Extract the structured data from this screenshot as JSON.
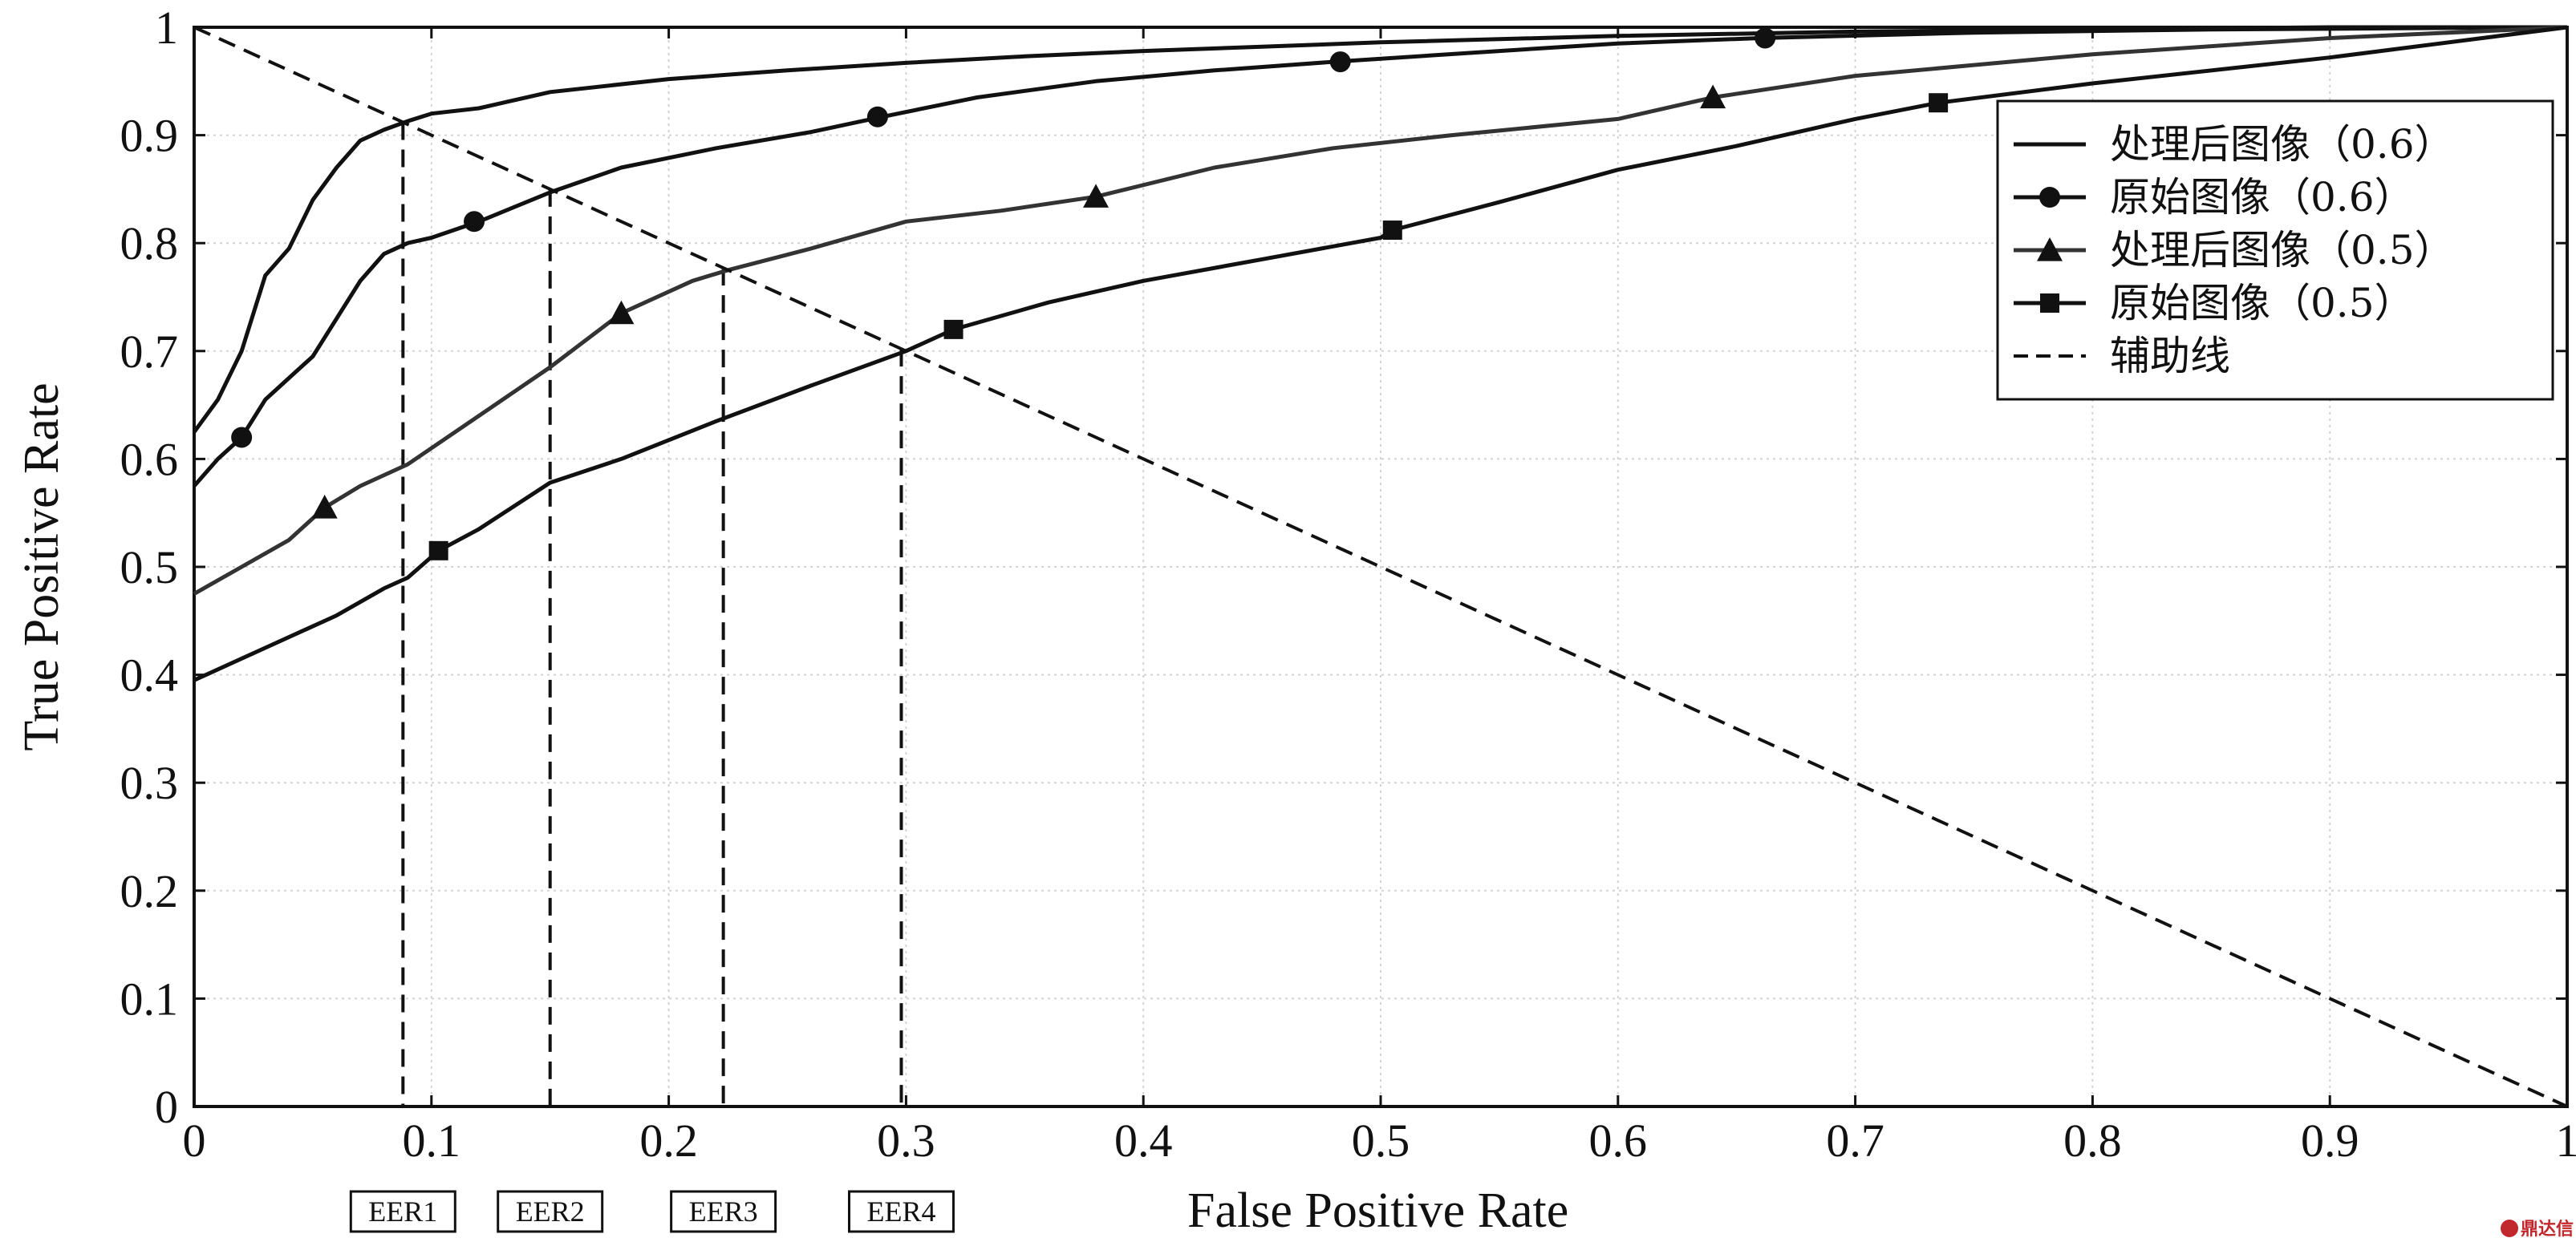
{
  "chart_data": {
    "type": "line",
    "title": "",
    "xlabel": "False Positive Rate",
    "ylabel": "True Positive Rate",
    "xlim": [
      0,
      1
    ],
    "ylim": [
      0,
      1
    ],
    "xticks": [
      "0",
      "0.1",
      "0.2",
      "0.3",
      "0.4",
      "0.5",
      "0.6",
      "0.7",
      "0.8",
      "0.9",
      "1"
    ],
    "yticks": [
      "0",
      "0.1",
      "0.2",
      "0.3",
      "0.4",
      "0.5",
      "0.6",
      "0.7",
      "0.8",
      "0.9",
      "1"
    ],
    "grid": true,
    "legend_position": "top-right",
    "series": [
      {
        "name": "处理后图像（0.6）",
        "marker": "none",
        "line": "solid",
        "color": "#111111",
        "points": [
          [
            0,
            0.625
          ],
          [
            0.01,
            0.655
          ],
          [
            0.02,
            0.7
          ],
          [
            0.03,
            0.77
          ],
          [
            0.04,
            0.795
          ],
          [
            0.05,
            0.84
          ],
          [
            0.06,
            0.87
          ],
          [
            0.07,
            0.895
          ],
          [
            0.08,
            0.905
          ],
          [
            0.09,
            0.913
          ],
          [
            0.1,
            0.92
          ],
          [
            0.12,
            0.925
          ],
          [
            0.15,
            0.94
          ],
          [
            0.2,
            0.952
          ],
          [
            0.25,
            0.96
          ],
          [
            0.3,
            0.967
          ],
          [
            0.35,
            0.973
          ],
          [
            0.4,
            0.978
          ],
          [
            0.45,
            0.982
          ],
          [
            0.5,
            0.986
          ],
          [
            0.6,
            0.992
          ],
          [
            0.7,
            0.996
          ],
          [
            0.8,
            0.998
          ],
          [
            0.9,
            1.0
          ],
          [
            1.0,
            1.0
          ]
        ],
        "markers": []
      },
      {
        "name": "原始图像（0.6）",
        "marker": "circle",
        "line": "solid",
        "color": "#111111",
        "points": [
          [
            0,
            0.575
          ],
          [
            0.01,
            0.6
          ],
          [
            0.02,
            0.62
          ],
          [
            0.03,
            0.655
          ],
          [
            0.04,
            0.675
          ],
          [
            0.05,
            0.695
          ],
          [
            0.06,
            0.73
          ],
          [
            0.07,
            0.765
          ],
          [
            0.08,
            0.79
          ],
          [
            0.09,
            0.8
          ],
          [
            0.1,
            0.805
          ],
          [
            0.12,
            0.82
          ],
          [
            0.15,
            0.847
          ],
          [
            0.18,
            0.87
          ],
          [
            0.22,
            0.888
          ],
          [
            0.26,
            0.903
          ],
          [
            0.29,
            0.917
          ],
          [
            0.33,
            0.935
          ],
          [
            0.38,
            0.95
          ],
          [
            0.43,
            0.96
          ],
          [
            0.48,
            0.968
          ],
          [
            0.55,
            0.978
          ],
          [
            0.6,
            0.985
          ],
          [
            0.66,
            0.99
          ],
          [
            0.75,
            0.995
          ],
          [
            0.85,
            0.998
          ],
          [
            1.0,
            1.0
          ]
        ],
        "markers": [
          [
            0.02,
            0.62
          ],
          [
            0.118,
            0.82
          ],
          [
            0.288,
            0.917
          ],
          [
            0.483,
            0.968
          ],
          [
            0.662,
            0.99
          ]
        ]
      },
      {
        "name": "处理后图像（0.5）",
        "marker": "triangle",
        "line": "solid",
        "color": "#333333",
        "points": [
          [
            0,
            0.475
          ],
          [
            0.02,
            0.5
          ],
          [
            0.04,
            0.525
          ],
          [
            0.055,
            0.555
          ],
          [
            0.07,
            0.575
          ],
          [
            0.09,
            0.595
          ],
          [
            0.12,
            0.64
          ],
          [
            0.15,
            0.685
          ],
          [
            0.18,
            0.735
          ],
          [
            0.21,
            0.765
          ],
          [
            0.225,
            0.775
          ],
          [
            0.26,
            0.795
          ],
          [
            0.3,
            0.82
          ],
          [
            0.34,
            0.83
          ],
          [
            0.38,
            0.843
          ],
          [
            0.43,
            0.87
          ],
          [
            0.48,
            0.888
          ],
          [
            0.53,
            0.9
          ],
          [
            0.6,
            0.915
          ],
          [
            0.64,
            0.935
          ],
          [
            0.7,
            0.955
          ],
          [
            0.75,
            0.965
          ],
          [
            0.8,
            0.975
          ],
          [
            0.9,
            0.99
          ],
          [
            1.0,
            1.0
          ]
        ],
        "markers": [
          [
            0.055,
            0.555
          ],
          [
            0.18,
            0.735
          ],
          [
            0.38,
            0.843
          ],
          [
            0.64,
            0.935
          ]
        ]
      },
      {
        "name": "原始图像（0.5）",
        "marker": "square",
        "line": "solid",
        "color": "#111111",
        "points": [
          [
            0,
            0.395
          ],
          [
            0.02,
            0.415
          ],
          [
            0.04,
            0.435
          ],
          [
            0.06,
            0.455
          ],
          [
            0.08,
            0.48
          ],
          [
            0.09,
            0.49
          ],
          [
            0.103,
            0.515
          ],
          [
            0.12,
            0.535
          ],
          [
            0.15,
            0.578
          ],
          [
            0.18,
            0.6
          ],
          [
            0.22,
            0.635
          ],
          [
            0.26,
            0.668
          ],
          [
            0.3,
            0.7
          ],
          [
            0.32,
            0.72
          ],
          [
            0.36,
            0.745
          ],
          [
            0.4,
            0.765
          ],
          [
            0.45,
            0.785
          ],
          [
            0.5,
            0.805
          ],
          [
            0.505,
            0.812
          ],
          [
            0.55,
            0.838
          ],
          [
            0.6,
            0.868
          ],
          [
            0.65,
            0.89
          ],
          [
            0.7,
            0.915
          ],
          [
            0.735,
            0.93
          ],
          [
            0.8,
            0.948
          ],
          [
            0.9,
            0.972
          ],
          [
            1.0,
            1.0
          ]
        ],
        "markers": [
          [
            0.103,
            0.515
          ],
          [
            0.32,
            0.72
          ],
          [
            0.505,
            0.812
          ],
          [
            0.735,
            0.93
          ]
        ]
      },
      {
        "name": "辅助线",
        "marker": "none",
        "line": "dashed",
        "color": "#111111",
        "points": [
          [
            0,
            1
          ],
          [
            1,
            0
          ]
        ],
        "markers": []
      }
    ],
    "eer_markers": [
      {
        "label": "EER1",
        "x": 0.088,
        "y": 0.912
      },
      {
        "label": "EER2",
        "x": 0.15,
        "y": 0.85
      },
      {
        "label": "EER3",
        "x": 0.223,
        "y": 0.777
      },
      {
        "label": "EER4",
        "x": 0.298,
        "y": 0.702
      }
    ]
  },
  "watermark": {
    "text": "鼎达信",
    "color": "#c0282d"
  }
}
